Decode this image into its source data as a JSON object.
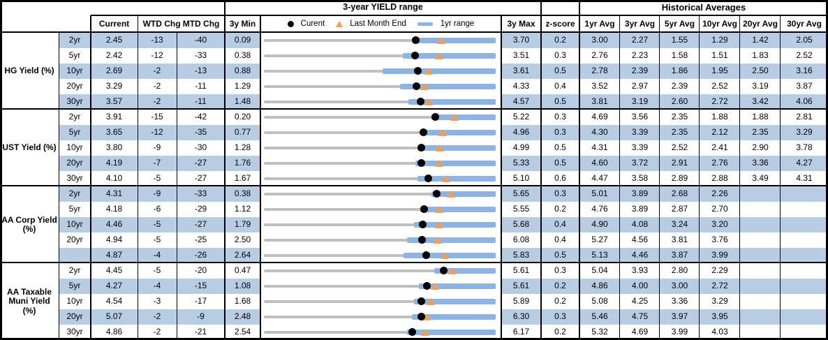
{
  "titles": {
    "range": "3-year YIELD range",
    "historical": "Historical Averages"
  },
  "columns": {
    "current": "Current",
    "wtd": "WTD Chg",
    "mtd": "MTD Chg",
    "min": "3y Min",
    "max": "3y Max",
    "z": "z-score"
  },
  "avg_columns": [
    "1yr Avg",
    "3yr Avg",
    "5yr Avg",
    "10yr Avg",
    "20yr Avg",
    "30yr Avg"
  ],
  "legend": {
    "current": "Curent",
    "last_month_end": "Last Month End",
    "one_yr_range": "1yr range"
  },
  "colors": {
    "band": "#b8cce4",
    "range_bar": "#8eb4e3",
    "track": "#bfbfbf",
    "triangle": "#f79d52",
    "dot": "#000000"
  },
  "chart_data": {
    "type": "table",
    "title": "3-year YIELD range",
    "row_chart": {
      "type": "range-bullet",
      "encoding": {
        "axis": "each row scaled from min_3y (left) to max_3y (right)",
        "gray_track": "full 3-year range",
        "blue_bar": "1yr range (yr1_low to yr1_high)",
        "black_dot": "Current yield",
        "orange_triangle": "Last Month End yield"
      }
    },
    "groups": [
      {
        "label": "HG Yield (%)",
        "rows": [
          {
            "tenor": "2yr",
            "current": 2.45,
            "wtd_chg": -13,
            "mtd_chg": -40,
            "min_3y": 0.09,
            "max_3y": 3.7,
            "z_score": 0.2,
            "yr1_low": 2.4,
            "yr1_high": 3.7,
            "last_month_end": 2.85,
            "avgs": [
              3.0,
              2.27,
              1.55,
              1.29,
              1.42,
              2.05
            ]
          },
          {
            "tenor": "5yr",
            "current": 2.42,
            "wtd_chg": -12,
            "mtd_chg": -33,
            "min_3y": 0.38,
            "max_3y": 3.51,
            "z_score": 0.3,
            "yr1_low": 2.26,
            "yr1_high": 3.51,
            "last_month_end": 2.75,
            "avgs": [
              2.76,
              2.23,
              1.58,
              1.51,
              1.83,
              2.52
            ]
          },
          {
            "tenor": "10yr",
            "current": 2.69,
            "wtd_chg": -2,
            "mtd_chg": -13,
            "min_3y": 0.88,
            "max_3y": 3.61,
            "z_score": 0.5,
            "yr1_low": 2.28,
            "yr1_high": 3.61,
            "last_month_end": 2.82,
            "avgs": [
              2.78,
              2.39,
              1.86,
              1.95,
              2.5,
              3.16
            ]
          },
          {
            "tenor": "20yr",
            "current": 3.29,
            "wtd_chg": -2,
            "mtd_chg": -11,
            "min_3y": 1.29,
            "max_3y": 4.33,
            "z_score": 0.4,
            "yr1_low": 3.08,
            "yr1_high": 4.33,
            "last_month_end": 3.4,
            "avgs": [
              3.52,
              2.97,
              2.39,
              2.52,
              3.19,
              3.87
            ]
          },
          {
            "tenor": "30yr",
            "current": 3.57,
            "wtd_chg": -2,
            "mtd_chg": -11,
            "min_3y": 1.48,
            "max_3y": 4.57,
            "z_score": 0.5,
            "yr1_low": 3.41,
            "yr1_high": 4.57,
            "last_month_end": 3.68,
            "avgs": [
              3.81,
              3.19,
              2.6,
              2.72,
              3.42,
              4.06
            ]
          }
        ]
      },
      {
        "label": "UST Yield (%)",
        "rows": [
          {
            "tenor": "2yr",
            "current": 3.91,
            "wtd_chg": -15,
            "mtd_chg": -42,
            "min_3y": 0.2,
            "max_3y": 5.22,
            "z_score": 0.3,
            "yr1_low": 3.83,
            "yr1_high": 5.22,
            "last_month_end": 4.33,
            "avgs": [
              4.69,
              3.56,
              2.35,
              1.88,
              1.88,
              2.81
            ]
          },
          {
            "tenor": "5yr",
            "current": 3.65,
            "wtd_chg": -12,
            "mtd_chg": -35,
            "min_3y": 0.77,
            "max_3y": 4.96,
            "z_score": 0.3,
            "yr1_low": 3.61,
            "yr1_high": 4.96,
            "last_month_end": 4.0,
            "avgs": [
              4.3,
              3.39,
              2.35,
              2.12,
              2.35,
              3.29
            ]
          },
          {
            "tenor": "10yr",
            "current": 3.8,
            "wtd_chg": -9,
            "mtd_chg": -30,
            "min_3y": 1.28,
            "max_3y": 4.99,
            "z_score": 0.5,
            "yr1_low": 3.74,
            "yr1_high": 4.99,
            "last_month_end": 4.1,
            "avgs": [
              4.31,
              3.39,
              2.52,
              2.41,
              2.9,
              3.78
            ]
          },
          {
            "tenor": "20yr",
            "current": 4.19,
            "wtd_chg": -7,
            "mtd_chg": -27,
            "min_3y": 1.76,
            "max_3y": 5.33,
            "z_score": 0.5,
            "yr1_low": 4.09,
            "yr1_high": 5.33,
            "last_month_end": 4.46,
            "avgs": [
              4.6,
              3.72,
              2.91,
              2.76,
              3.36,
              4.27
            ]
          },
          {
            "tenor": "30yr",
            "current": 4.1,
            "wtd_chg": -5,
            "mtd_chg": -27,
            "min_3y": 1.67,
            "max_3y": 5.1,
            "z_score": 0.6,
            "yr1_low": 3.94,
            "yr1_high": 5.1,
            "last_month_end": 4.37,
            "avgs": [
              4.47,
              3.58,
              2.89,
              2.88,
              3.49,
              4.31
            ]
          }
        ]
      },
      {
        "label": "AA Corp Yield\n(%)",
        "rows": [
          {
            "tenor": "2yr",
            "current": 4.31,
            "wtd_chg": -9,
            "mtd_chg": -33,
            "min_3y": 0.38,
            "max_3y": 5.65,
            "z_score": 0.3,
            "yr1_low": 4.19,
            "yr1_high": 5.65,
            "last_month_end": 4.64,
            "avgs": [
              5.01,
              3.89,
              2.68,
              2.26,
              null,
              null
            ]
          },
          {
            "tenor": "5yr",
            "current": 4.18,
            "wtd_chg": -6,
            "mtd_chg": -29,
            "min_3y": 1.12,
            "max_3y": 5.55,
            "z_score": 0.2,
            "yr1_low": 4.11,
            "yr1_high": 5.55,
            "last_month_end": 4.47,
            "avgs": [
              4.76,
              3.89,
              2.87,
              2.7,
              null,
              null
            ]
          },
          {
            "tenor": "10yr",
            "current": 4.46,
            "wtd_chg": -5,
            "mtd_chg": -27,
            "min_3y": 1.79,
            "max_3y": 5.68,
            "z_score": 0.4,
            "yr1_low": 4.31,
            "yr1_high": 5.68,
            "last_month_end": 4.73,
            "avgs": [
              4.9,
              4.08,
              3.24,
              3.2,
              null,
              null
            ]
          },
          {
            "tenor": "20yr",
            "current": 4.94,
            "wtd_chg": -5,
            "mtd_chg": -25,
            "min_3y": 2.5,
            "max_3y": 6.08,
            "z_score": 0.4,
            "yr1_low": 4.71,
            "yr1_high": 6.08,
            "last_month_end": 5.19,
            "avgs": [
              5.27,
              4.56,
              3.81,
              3.76,
              null,
              null
            ]
          },
          {
            "tenor": "",
            "current": 4.87,
            "wtd_chg": -4,
            "mtd_chg": -26,
            "min_3y": 2.64,
            "max_3y": 5.83,
            "z_score": 0.5,
            "yr1_low": 4.56,
            "yr1_high": 5.83,
            "last_month_end": 5.13,
            "avgs": [
              5.13,
              4.46,
              3.87,
              3.99,
              null,
              null
            ]
          }
        ]
      },
      {
        "label": "AA Taxable\nMuni Yield\n(%)",
        "rows": [
          {
            "tenor": "2yr",
            "current": 4.45,
            "wtd_chg": -5,
            "mtd_chg": -20,
            "min_3y": 0.47,
            "max_3y": 5.61,
            "z_score": 0.3,
            "yr1_low": 4.25,
            "yr1_high": 5.61,
            "last_month_end": 4.65,
            "avgs": [
              5.04,
              3.93,
              2.8,
              2.29,
              null,
              null
            ]
          },
          {
            "tenor": "5yr",
            "current": 4.27,
            "wtd_chg": -4,
            "mtd_chg": -15,
            "min_3y": 1.08,
            "max_3y": 5.61,
            "z_score": 0.2,
            "yr1_low": 4.11,
            "yr1_high": 5.61,
            "last_month_end": 4.42,
            "avgs": [
              4.86,
              4.0,
              3.0,
              2.72,
              null,
              null
            ]
          },
          {
            "tenor": "10yr",
            "current": 4.54,
            "wtd_chg": -3,
            "mtd_chg": -17,
            "min_3y": 1.68,
            "max_3y": 5.89,
            "z_score": 0.2,
            "yr1_low": 4.41,
            "yr1_high": 5.89,
            "last_month_end": 4.71,
            "avgs": [
              5.08,
              4.25,
              3.36,
              3.29,
              null,
              null
            ]
          },
          {
            "tenor": "20yr",
            "current": 5.07,
            "wtd_chg": -2,
            "mtd_chg": -9,
            "min_3y": 2.48,
            "max_3y": 6.3,
            "z_score": 0.3,
            "yr1_low": 4.92,
            "yr1_high": 6.3,
            "last_month_end": 5.16,
            "avgs": [
              5.46,
              4.75,
              3.97,
              3.95,
              null,
              null
            ]
          },
          {
            "tenor": "30yr",
            "current": 4.86,
            "wtd_chg": -2,
            "mtd_chg": -21,
            "min_3y": 2.54,
            "max_3y": 6.17,
            "z_score": 0.2,
            "yr1_low": 4.78,
            "yr1_high": 6.17,
            "last_month_end": 5.07,
            "avgs": [
              5.32,
              4.69,
              3.99,
              4.03,
              null,
              null
            ]
          }
        ]
      }
    ]
  }
}
